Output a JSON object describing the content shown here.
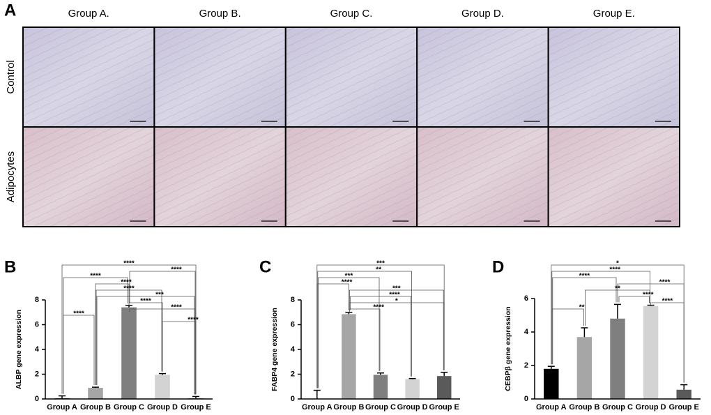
{
  "panel_a": {
    "label": "A",
    "columns": [
      "Group A.",
      "Group B.",
      "Group C.",
      "Group D.",
      "Group E."
    ],
    "rows": [
      "Control",
      "Adipocytes"
    ]
  },
  "chart_data": [
    {
      "type": "bar",
      "panel_label": "B",
      "y_label": "ALBP  gene expression",
      "categories": [
        "Group A",
        "Group B",
        "Group C",
        "Group D",
        "Group E"
      ],
      "values": [
        0.05,
        0.9,
        7.4,
        1.95,
        0.05
      ],
      "errors": [
        0.2,
        0.05,
        0.15,
        0.1,
        0.15
      ],
      "colors": [
        "#000000",
        "#a6a6a6",
        "#7f7f7f",
        "#d3d3d3",
        "#5a5a5a"
      ],
      "ylim": [
        0,
        8
      ],
      "yticks": [
        0,
        2,
        4,
        6,
        8
      ],
      "comparisons": [
        {
          "between": [
            0,
            4
          ],
          "label": "****"
        },
        {
          "between": [
            2,
            4
          ],
          "label": "****"
        },
        {
          "between": [
            0,
            2
          ],
          "label": "****"
        },
        {
          "between": [
            1,
            2
          ],
          "label": "****"
        },
        {
          "between": [
            1,
            3
          ],
          "label": "****"
        },
        {
          "between": [
            1,
            4
          ],
          "label": "***"
        },
        {
          "between": [
            2,
            3
          ],
          "label": "****"
        },
        {
          "between": [
            2,
            4
          ],
          "label": "****"
        },
        {
          "between": [
            0,
            1
          ],
          "label": "****"
        },
        {
          "between": [
            3,
            4
          ],
          "label": "****"
        }
      ]
    },
    {
      "type": "bar",
      "panel_label": "C",
      "y_label": "FABP4 gene expression",
      "categories": [
        "Group A",
        "Group B",
        "Group C",
        "Group D",
        "Group E"
      ],
      "values": [
        0,
        6.85,
        1.95,
        1.6,
        1.85
      ],
      "errors": [
        0.7,
        0.15,
        0.15,
        0.05,
        0.3
      ],
      "colors": [
        "#000000",
        "#a6a6a6",
        "#7f7f7f",
        "#d3d3d3",
        "#5a5a5a"
      ],
      "ylim": [
        0,
        8
      ],
      "yticks": [
        0,
        2,
        4,
        6,
        8
      ],
      "comparisons": [
        {
          "between": [
            0,
            4
          ],
          "label": "***"
        },
        {
          "between": [
            0,
            3
          ],
          "label": "**"
        },
        {
          "between": [
            0,
            2
          ],
          "label": "***"
        },
        {
          "between": [
            0,
            1
          ],
          "label": "****"
        },
        {
          "between": [
            1,
            4
          ],
          "label": "***"
        },
        {
          "between": [
            1,
            3
          ],
          "label": "****"
        },
        {
          "between": [
            1,
            4
          ],
          "label": "*"
        },
        {
          "between": [
            1,
            2
          ],
          "label": "****"
        }
      ]
    },
    {
      "type": "bar",
      "panel_label": "D",
      "y_label": "CEBPβ gene expression",
      "categories": [
        "Group A",
        "Group B",
        "Group C",
        "Group D",
        "Group E"
      ],
      "values": [
        1.8,
        3.7,
        4.8,
        5.55,
        0.55
      ],
      "errors": [
        0.15,
        0.55,
        0.85,
        0.05,
        0.3
      ],
      "colors": [
        "#000000",
        "#a6a6a6",
        "#7f7f7f",
        "#d3d3d3",
        "#5a5a5a"
      ],
      "ylim": [
        0,
        6
      ],
      "yticks": [
        0,
        2,
        4,
        6
      ],
      "comparisons": [
        {
          "between": [
            0,
            4
          ],
          "label": "*"
        },
        {
          "between": [
            0,
            3
          ],
          "label": "****"
        },
        {
          "between": [
            0,
            2
          ],
          "label": "****"
        },
        {
          "between": [
            2,
            4
          ],
          "label": "****"
        },
        {
          "between": [
            1,
            3
          ],
          "label": "**"
        },
        {
          "between": [
            2,
            3
          ],
          "label": "****"
        },
        {
          "between": [
            3,
            4
          ],
          "label": "****"
        },
        {
          "between": [
            0,
            1
          ],
          "label": "**"
        }
      ]
    }
  ]
}
